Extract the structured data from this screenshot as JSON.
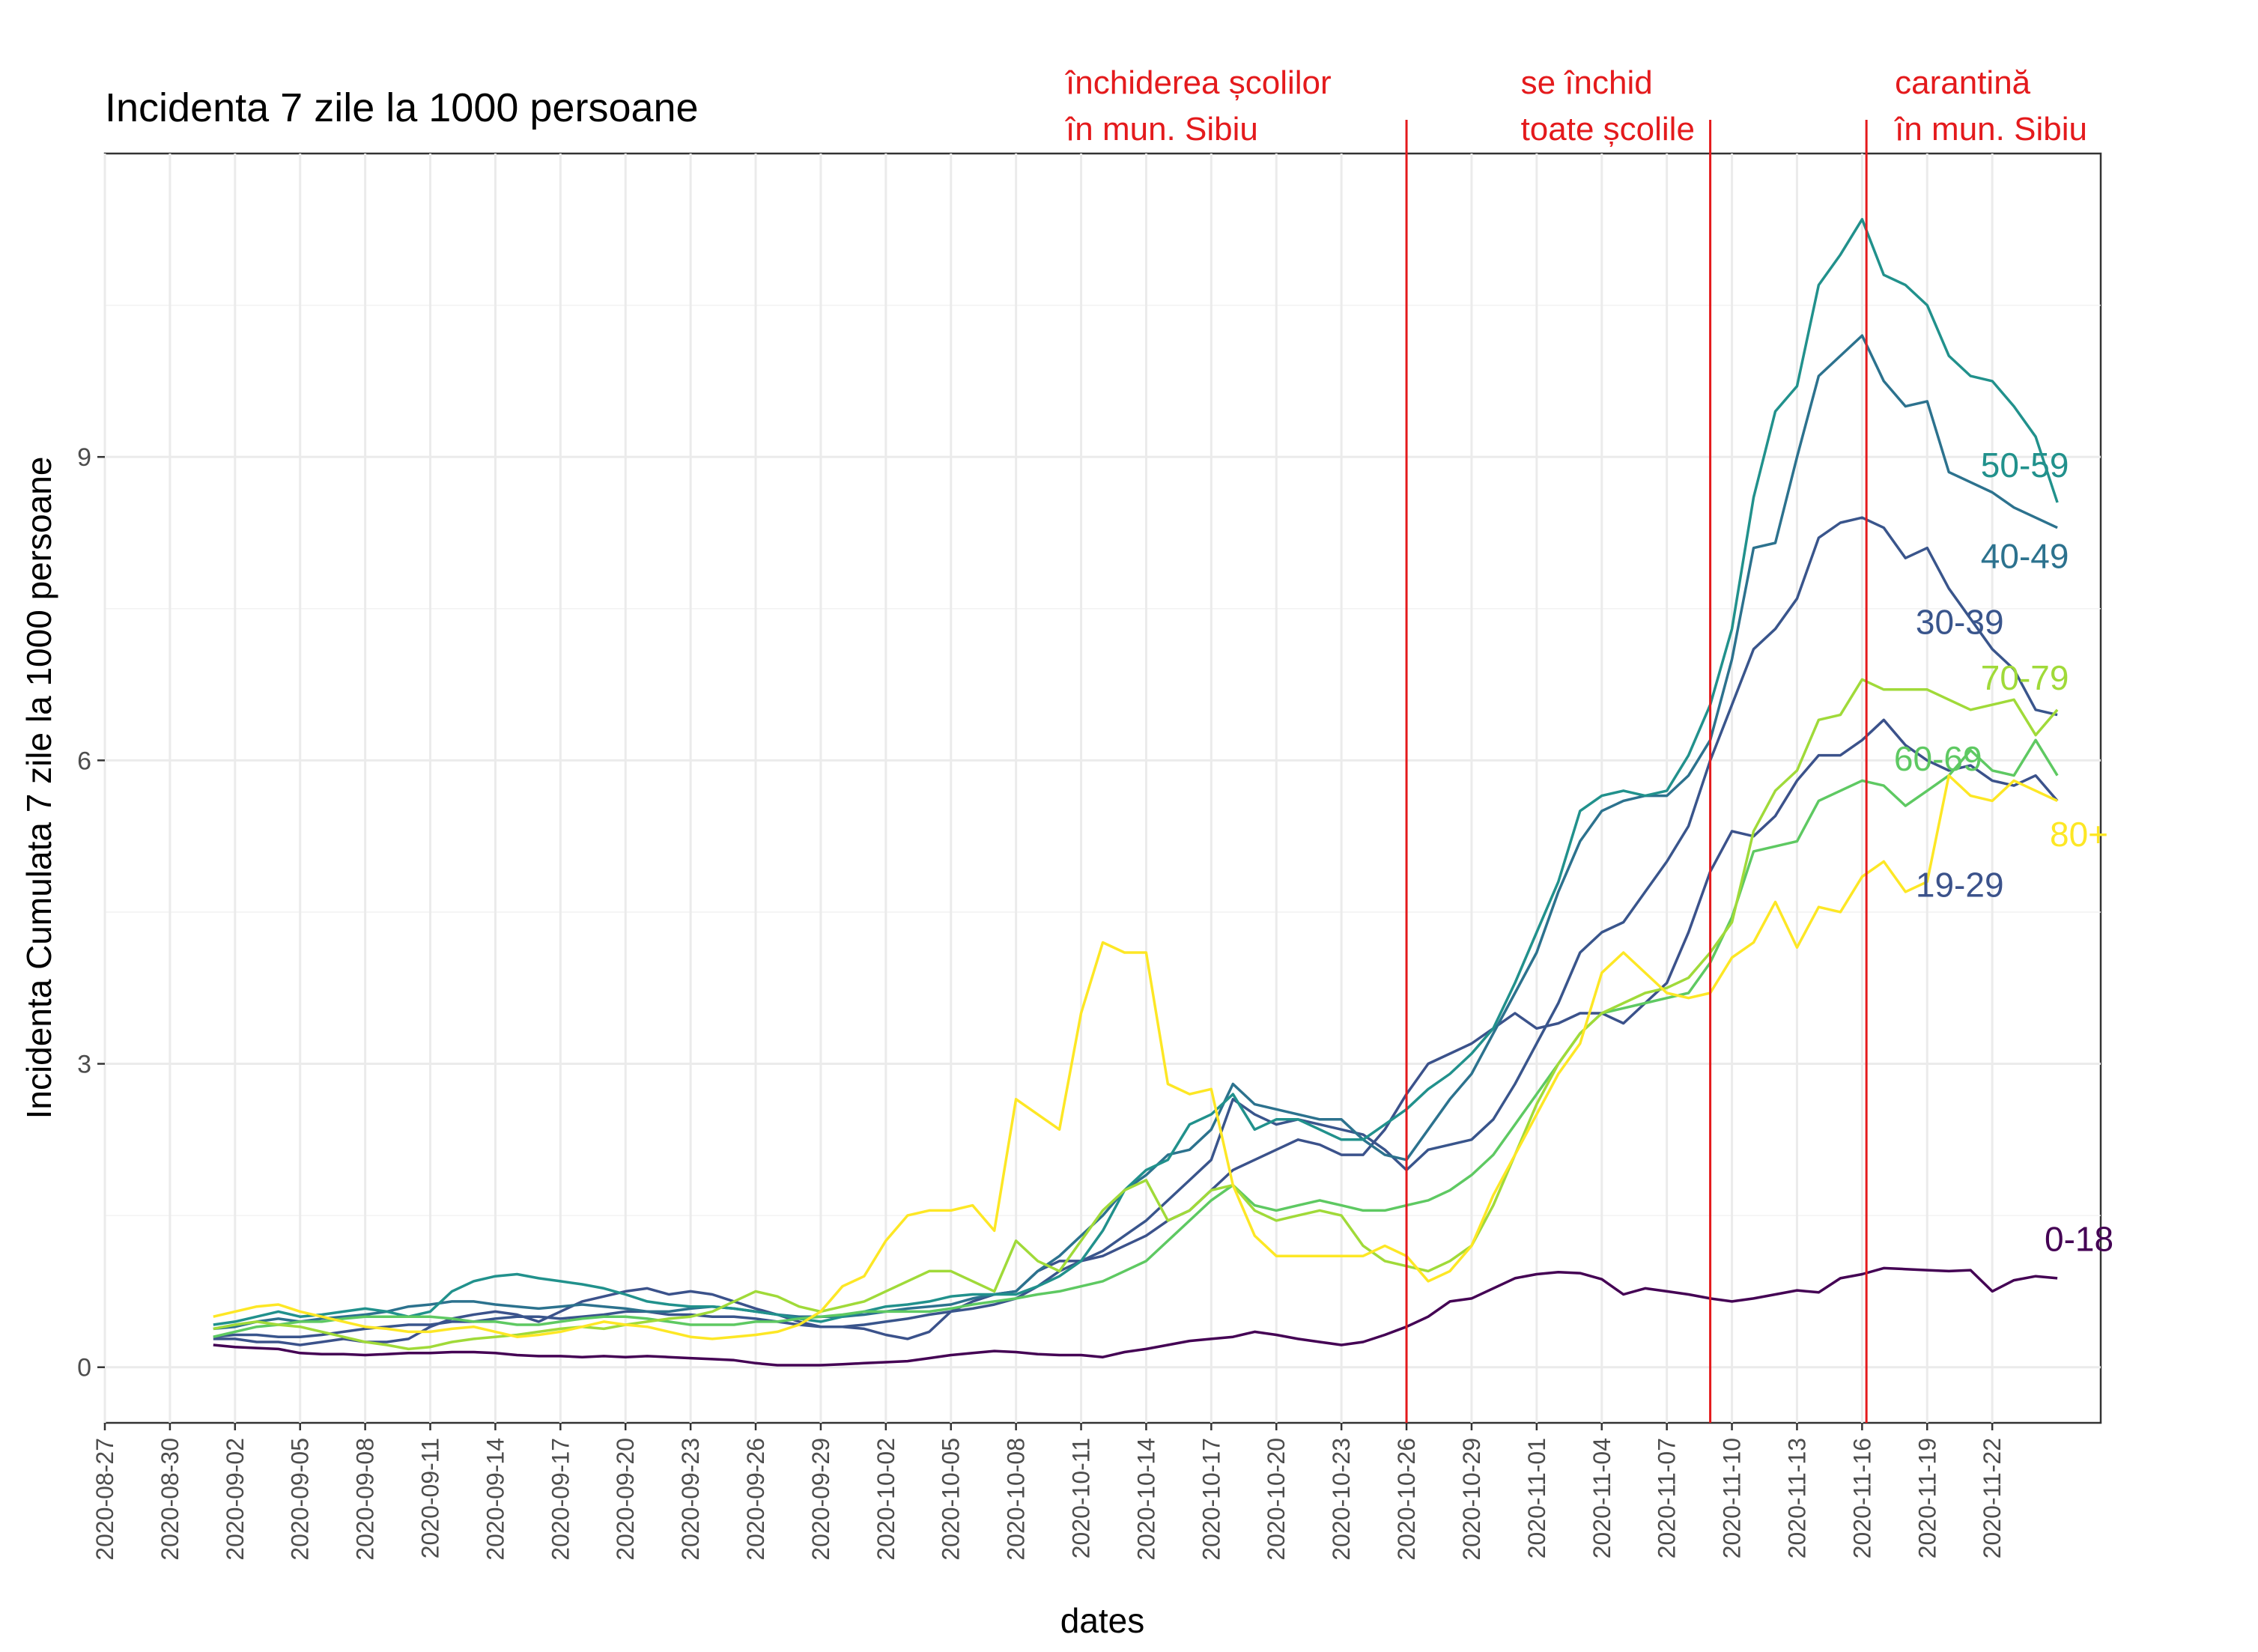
{
  "chart_data": {
    "type": "line",
    "title": "Incidenta 7 zile la 1000 persoane",
    "xlabel": "dates",
    "ylabel": "Incidenta Cumulata 7 zile la 1000 persoane",
    "x_start": "2020-09-01",
    "x_step_days": 1,
    "xlim_days": [
      -5,
      87
    ],
    "xtick_labels": [
      "2020-08-27",
      "2020-08-30",
      "2020-09-02",
      "2020-09-05",
      "2020-09-08",
      "2020-09-11",
      "2020-09-14",
      "2020-09-17",
      "2020-09-20",
      "2020-09-23",
      "2020-09-26",
      "2020-09-29",
      "2020-10-02",
      "2020-10-05",
      "2020-10-08",
      "2020-10-11",
      "2020-10-14",
      "2020-10-17",
      "2020-10-20",
      "2020-10-23",
      "2020-10-26",
      "2020-10-29",
      "2020-11-01",
      "2020-11-04",
      "2020-11-07",
      "2020-11-10",
      "2020-11-13",
      "2020-11-16",
      "2020-11-19",
      "2020-11-22"
    ],
    "ylim": [
      -0.55,
      12
    ],
    "yticks": [
      0,
      3,
      6,
      9
    ],
    "grid": true,
    "legend": "direct labels at line ends",
    "series": [
      {
        "name": "0-18",
        "color": "#440154",
        "values": [
          0.22,
          0.2,
          0.19,
          0.18,
          0.14,
          0.13,
          0.13,
          0.12,
          0.13,
          0.14,
          0.14,
          0.15,
          0.15,
          0.14,
          0.12,
          0.11,
          0.11,
          0.1,
          0.11,
          0.1,
          0.11,
          0.1,
          0.09,
          0.08,
          0.07,
          0.04,
          0.02,
          0.02,
          0.02,
          0.03,
          0.04,
          0.05,
          0.06,
          0.09,
          0.12,
          0.14,
          0.16,
          0.15,
          0.13,
          0.12,
          0.12,
          0.1,
          0.15,
          0.18,
          0.22,
          0.26,
          0.28,
          0.3,
          0.35,
          0.32,
          0.28,
          0.25,
          0.22,
          0.25,
          0.32,
          0.4,
          0.5,
          0.65,
          0.68,
          0.78,
          0.88,
          0.92,
          0.94,
          0.93,
          0.87,
          0.72,
          0.78,
          0.75,
          0.72,
          0.68,
          0.65,
          0.68,
          0.72,
          0.76,
          0.74,
          0.88,
          0.92,
          0.98,
          0.97,
          0.96,
          0.95,
          0.96,
          0.75,
          0.86,
          0.9,
          0.88
        ]
      },
      {
        "name": "19-29",
        "color": "#3b528b",
        "values": [
          0.28,
          0.28,
          0.25,
          0.25,
          0.22,
          0.25,
          0.28,
          0.25,
          0.25,
          0.28,
          0.4,
          0.48,
          0.52,
          0.55,
          0.52,
          0.45,
          0.55,
          0.65,
          0.7,
          0.75,
          0.78,
          0.72,
          0.75,
          0.72,
          0.65,
          0.58,
          0.52,
          0.45,
          0.4,
          0.4,
          0.38,
          0.32,
          0.28,
          0.35,
          0.55,
          0.65,
          0.72,
          0.75,
          0.95,
          1.05,
          1.05,
          1.1,
          1.2,
          1.3,
          1.45,
          1.55,
          1.75,
          1.95,
          2.05,
          2.15,
          2.25,
          2.2,
          2.1,
          2.1,
          2.35,
          2.7,
          3.0,
          3.1,
          3.2,
          3.35,
          3.5,
          3.35,
          3.4,
          3.5,
          3.5,
          3.4,
          3.6,
          3.8,
          4.3,
          4.9,
          5.3,
          5.25,
          5.45,
          5.8,
          6.05,
          6.05,
          6.2,
          6.4,
          6.15,
          6.0,
          5.9,
          5.95,
          5.8,
          5.75,
          5.85,
          5.6
        ]
      },
      {
        "name": "30-39",
        "color": "#39558c",
        "values": [
          0.3,
          0.32,
          0.32,
          0.3,
          0.3,
          0.32,
          0.35,
          0.38,
          0.4,
          0.42,
          0.42,
          0.45,
          0.45,
          0.48,
          0.5,
          0.5,
          0.48,
          0.5,
          0.52,
          0.55,
          0.55,
          0.52,
          0.52,
          0.5,
          0.5,
          0.48,
          0.45,
          0.42,
          0.4,
          0.4,
          0.42,
          0.45,
          0.48,
          0.52,
          0.55,
          0.58,
          0.62,
          0.68,
          0.8,
          0.95,
          1.05,
          1.15,
          1.3,
          1.45,
          1.65,
          1.85,
          2.05,
          2.65,
          2.5,
          2.4,
          2.45,
          2.4,
          2.35,
          2.3,
          2.15,
          1.95,
          2.15,
          2.2,
          2.25,
          2.45,
          2.8,
          3.2,
          3.6,
          4.1,
          4.3,
          4.4,
          4.7,
          5.0,
          5.35,
          6.0,
          6.55,
          7.1,
          7.3,
          7.6,
          8.2,
          8.35,
          8.4,
          8.3,
          8.0,
          8.1,
          7.7,
          7.4,
          7.1,
          6.9,
          6.5,
          6.45
        ]
      },
      {
        "name": "40-49",
        "color": "#2c728e",
        "values": [
          0.38,
          0.4,
          0.45,
          0.48,
          0.45,
          0.48,
          0.5,
          0.52,
          0.55,
          0.6,
          0.62,
          0.65,
          0.65,
          0.62,
          0.6,
          0.58,
          0.6,
          0.62,
          0.6,
          0.58,
          0.55,
          0.55,
          0.58,
          0.6,
          0.58,
          0.55,
          0.52,
          0.5,
          0.5,
          0.5,
          0.52,
          0.55,
          0.58,
          0.6,
          0.62,
          0.68,
          0.72,
          0.75,
          0.95,
          1.1,
          1.3,
          1.5,
          1.75,
          1.9,
          2.1,
          2.15,
          2.35,
          2.8,
          2.6,
          2.55,
          2.5,
          2.45,
          2.45,
          2.25,
          2.1,
          2.05,
          2.35,
          2.65,
          2.9,
          3.3,
          3.7,
          4.1,
          4.7,
          5.2,
          5.5,
          5.6,
          5.65,
          5.65,
          5.85,
          6.2,
          7.0,
          8.1,
          8.15,
          9.0,
          9.8,
          10.0,
          10.2,
          9.75,
          9.5,
          9.55,
          8.85,
          8.75,
          8.65,
          8.5,
          8.4,
          8.3
        ]
      },
      {
        "name": "50-59",
        "color": "#21918c",
        "values": [
          0.42,
          0.45,
          0.5,
          0.55,
          0.5,
          0.52,
          0.55,
          0.58,
          0.55,
          0.5,
          0.55,
          0.75,
          0.85,
          0.9,
          0.92,
          0.88,
          0.85,
          0.82,
          0.78,
          0.72,
          0.65,
          0.62,
          0.6,
          0.6,
          0.58,
          0.55,
          0.52,
          0.48,
          0.45,
          0.5,
          0.55,
          0.6,
          0.62,
          0.65,
          0.7,
          0.72,
          0.72,
          0.72,
          0.8,
          0.9,
          1.05,
          1.35,
          1.75,
          1.95,
          2.05,
          2.4,
          2.5,
          2.7,
          2.35,
          2.45,
          2.45,
          2.35,
          2.25,
          2.25,
          2.4,
          2.55,
          2.75,
          2.9,
          3.1,
          3.35,
          3.8,
          4.3,
          4.8,
          5.5,
          5.65,
          5.7,
          5.65,
          5.7,
          6.05,
          6.55,
          7.3,
          8.6,
          9.45,
          9.7,
          10.7,
          11.0,
          11.35,
          10.8,
          10.7,
          10.5,
          10.0,
          9.8,
          9.75,
          9.5,
          9.2,
          8.55
        ]
      },
      {
        "name": "60-69",
        "color": "#5ec962",
        "values": [
          0.3,
          0.35,
          0.4,
          0.42,
          0.45,
          0.45,
          0.48,
          0.5,
          0.5,
          0.5,
          0.5,
          0.48,
          0.45,
          0.45,
          0.42,
          0.42,
          0.45,
          0.48,
          0.5,
          0.5,
          0.48,
          0.45,
          0.42,
          0.42,
          0.42,
          0.45,
          0.45,
          0.48,
          0.5,
          0.52,
          0.55,
          0.55,
          0.55,
          0.55,
          0.58,
          0.62,
          0.65,
          0.68,
          0.72,
          0.75,
          0.8,
          0.85,
          0.95,
          1.05,
          1.25,
          1.45,
          1.65,
          1.8,
          1.6,
          1.55,
          1.6,
          1.65,
          1.6,
          1.55,
          1.55,
          1.6,
          1.65,
          1.75,
          1.9,
          2.1,
          2.4,
          2.7,
          3.0,
          3.3,
          3.5,
          3.55,
          3.6,
          3.65,
          3.7,
          4.0,
          4.45,
          5.1,
          5.15,
          5.2,
          5.6,
          5.7,
          5.8,
          5.75,
          5.55,
          5.7,
          5.85,
          6.1,
          5.9,
          5.85,
          6.2,
          5.85
        ]
      },
      {
        "name": "70-79",
        "color": "#a0da39",
        "values": [
          0.38,
          0.42,
          0.45,
          0.42,
          0.4,
          0.35,
          0.3,
          0.25,
          0.22,
          0.18,
          0.2,
          0.25,
          0.28,
          0.3,
          0.32,
          0.35,
          0.38,
          0.4,
          0.38,
          0.42,
          0.45,
          0.48,
          0.5,
          0.55,
          0.65,
          0.75,
          0.7,
          0.6,
          0.55,
          0.6,
          0.65,
          0.75,
          0.85,
          0.95,
          0.95,
          0.85,
          0.75,
          1.25,
          1.05,
          0.95,
          1.25,
          1.55,
          1.75,
          1.85,
          1.45,
          1.55,
          1.75,
          1.8,
          1.55,
          1.45,
          1.5,
          1.55,
          1.5,
          1.2,
          1.05,
          1.0,
          0.95,
          1.05,
          1.2,
          1.6,
          2.1,
          2.6,
          3.0,
          3.3,
          3.5,
          3.6,
          3.7,
          3.75,
          3.85,
          4.1,
          4.4,
          5.3,
          5.7,
          5.9,
          6.4,
          6.45,
          6.8,
          6.7,
          6.7,
          6.7,
          6.6,
          6.5,
          6.55,
          6.6,
          6.25,
          6.5
        ]
      },
      {
        "name": "80+",
        "color": "#fde725",
        "values": [
          0.5,
          0.55,
          0.6,
          0.62,
          0.55,
          0.5,
          0.45,
          0.4,
          0.38,
          0.35,
          0.35,
          0.38,
          0.4,
          0.35,
          0.3,
          0.32,
          0.35,
          0.4,
          0.45,
          0.42,
          0.4,
          0.35,
          0.3,
          0.28,
          0.3,
          0.32,
          0.35,
          0.42,
          0.55,
          0.8,
          0.9,
          1.25,
          1.5,
          1.55,
          1.55,
          1.6,
          1.35,
          2.65,
          2.5,
          2.35,
          3.5,
          4.2,
          4.1,
          4.1,
          2.8,
          2.7,
          2.75,
          1.8,
          1.3,
          1.1,
          1.1,
          1.1,
          1.1,
          1.1,
          1.2,
          1.1,
          0.85,
          0.95,
          1.2,
          1.7,
          2.1,
          2.5,
          2.9,
          3.2,
          3.9,
          4.1,
          3.9,
          3.7,
          3.65,
          3.7,
          4.05,
          4.2,
          4.6,
          4.15,
          4.55,
          4.5,
          4.85,
          5.0,
          4.7,
          4.8,
          5.85,
          5.65,
          5.6,
          5.8,
          5.7,
          5.6
        ]
      }
    ],
    "end_labels": [
      {
        "series": "50-59",
        "text": "50-59",
        "x_day": 83.5,
        "y": 8.8
      },
      {
        "series": "40-49",
        "text": "40-49",
        "x_day": 83.5,
        "y": 7.9
      },
      {
        "series": "30-39",
        "text": "30-39",
        "x_day": 80.5,
        "y": 7.25
      },
      {
        "series": "70-79",
        "text": "70-79",
        "x_day": 83.5,
        "y": 6.7
      },
      {
        "series": "60-69",
        "text": "60-69",
        "x_day": 79.5,
        "y": 5.9
      },
      {
        "series": "80+",
        "text": "80+",
        "x_day": 86,
        "y": 5.15
      },
      {
        "series": "19-29",
        "text": "19-29",
        "x_day": 80.5,
        "y": 4.65
      },
      {
        "series": "0-18",
        "text": "0-18",
        "x_day": 86,
        "y": 1.15
      }
    ],
    "events": [
      {
        "date": "2020-10-26",
        "x_day": 55,
        "label_lines": [
          "închiderea școlilor",
          "în mun. Sibiu"
        ]
      },
      {
        "date": "2020-11-09",
        "x_day": 69,
        "label_lines": [
          "se închid",
          "toate școlile"
        ]
      },
      {
        "date": "2020-11-16",
        "x_day": 76.2,
        "label_lines": [
          "carantină",
          "în mun. Sibiu"
        ]
      }
    ],
    "event_color": "#e41a1c"
  }
}
